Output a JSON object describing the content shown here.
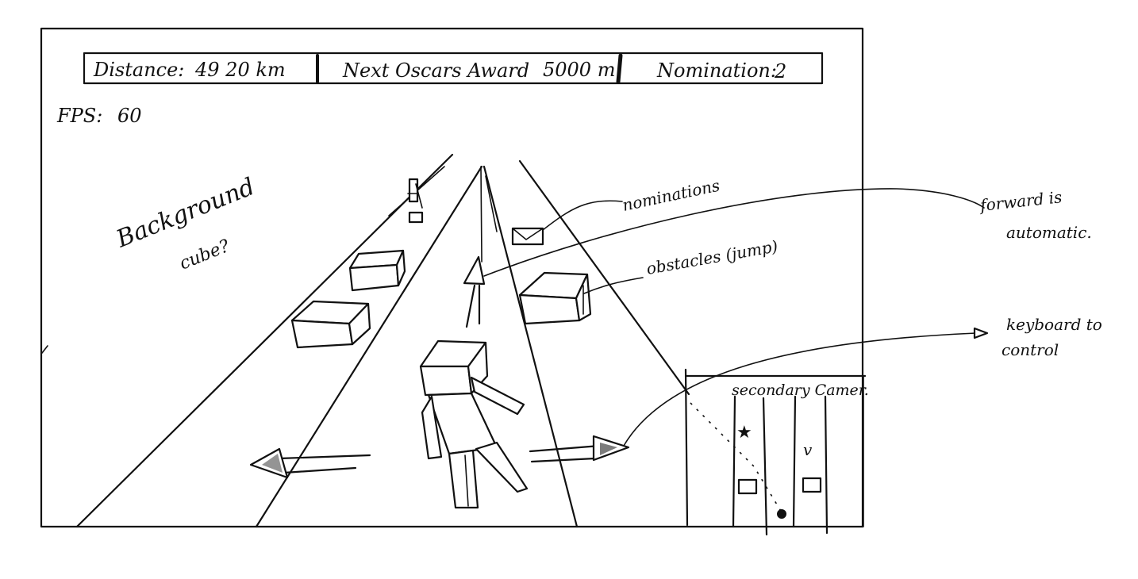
{
  "hud": {
    "distance_label": "Distance:",
    "distance_value": "49 20 km",
    "next_award_label": "Next Oscars Award",
    "next_award_value": "5000 m",
    "nomination_label": "Nomination:",
    "nomination_value": "2"
  },
  "fps": {
    "label": "FPS:",
    "value": "60"
  },
  "annotations": {
    "background_line1": "Background",
    "background_line2": "cube?",
    "nominations": "nominations",
    "obstacles": "obstacles (jump)",
    "forward_line1": "forward is",
    "forward_line2": "automatic.",
    "keyboard_line1": "keyboard to",
    "keyboard_line2": "control",
    "secondary_camera": "secondary Camer."
  },
  "icons": {
    "left-arrow": "left-arrow-icon",
    "right-arrow": "right-arrow-icon",
    "forward-arrow": "forward-arrow-icon",
    "nomination-envelope": "envelope-icon",
    "statuette": "oscar-statuette-icon",
    "minimap-star": "star-icon"
  },
  "colors": {
    "ink": "#111111",
    "paper": "#ffffff"
  }
}
